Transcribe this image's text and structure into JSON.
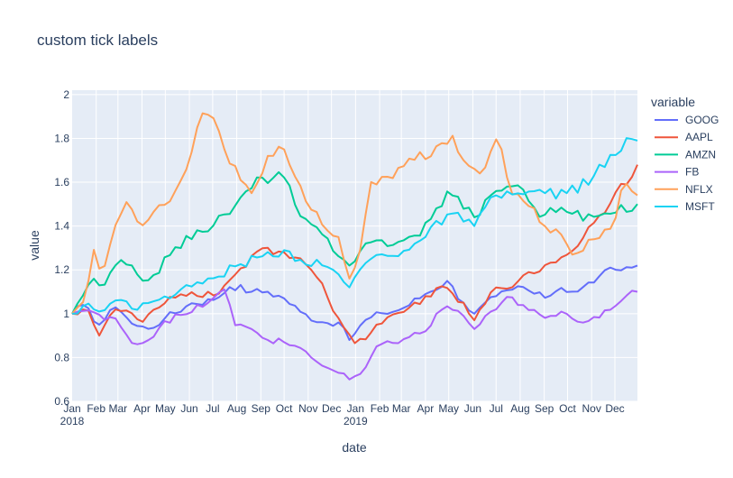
{
  "chart_data": {
    "type": "line",
    "title": "custom tick labels",
    "xlabel": "date",
    "ylabel": "value",
    "ylim": [
      0.6,
      2.02
    ],
    "y_ticks": [
      0.6,
      0.8,
      1,
      1.2,
      1.4,
      1.6,
      1.8,
      2
    ],
    "y_tick_labels": [
      "0.6",
      "0.8",
      "1",
      "1.2",
      "1.4",
      "1.6",
      "1.8",
      "2"
    ],
    "x_range": [
      "2018-01-01",
      "2019-12-30"
    ],
    "x_ticks": [
      {
        "date": "2018-01-01",
        "label": "Jan",
        "year": "2018"
      },
      {
        "date": "2018-02-01",
        "label": "Feb"
      },
      {
        "date": "2018-03-01",
        "label": "Mar"
      },
      {
        "date": "2018-04-01",
        "label": "Apr"
      },
      {
        "date": "2018-05-01",
        "label": "May"
      },
      {
        "date": "2018-06-01",
        "label": "Jun"
      },
      {
        "date": "2018-07-01",
        "label": "Jul"
      },
      {
        "date": "2018-08-01",
        "label": "Aug"
      },
      {
        "date": "2018-09-01",
        "label": "Sep"
      },
      {
        "date": "2018-10-01",
        "label": "Oct"
      },
      {
        "date": "2018-11-01",
        "label": "Nov"
      },
      {
        "date": "2018-12-01",
        "label": "Dec"
      },
      {
        "date": "2019-01-01",
        "label": "Jan",
        "year": "2019"
      },
      {
        "date": "2019-02-01",
        "label": "Feb"
      },
      {
        "date": "2019-03-01",
        "label": "Mar"
      },
      {
        "date": "2019-04-01",
        "label": "Apr"
      },
      {
        "date": "2019-05-01",
        "label": "May"
      },
      {
        "date": "2019-06-01",
        "label": "Jun"
      },
      {
        "date": "2019-07-01",
        "label": "Jul"
      },
      {
        "date": "2019-08-01",
        "label": "Aug"
      },
      {
        "date": "2019-09-01",
        "label": "Sep"
      },
      {
        "date": "2019-10-01",
        "label": "Oct"
      },
      {
        "date": "2019-11-01",
        "label": "Nov"
      },
      {
        "date": "2019-12-01",
        "label": "Dec"
      }
    ],
    "legend_title": "variable",
    "legend_position": "right",
    "series": [
      {
        "name": "GOOG",
        "color": "#636efa",
        "anchors": [
          [
            "2018-01-01",
            1.0
          ],
          [
            "2018-01-15",
            1.04
          ],
          [
            "2018-02-05",
            0.95
          ],
          [
            "2018-03-01",
            1.04
          ],
          [
            "2018-03-20",
            0.95
          ],
          [
            "2018-04-10",
            0.93
          ],
          [
            "2018-05-01",
            0.98
          ],
          [
            "2018-06-05",
            1.05
          ],
          [
            "2018-07-01",
            1.06
          ],
          [
            "2018-07-26",
            1.13
          ],
          [
            "2018-08-20",
            1.1
          ],
          [
            "2018-09-10",
            1.1
          ],
          [
            "2018-10-01",
            1.07
          ],
          [
            "2018-10-25",
            1.0
          ],
          [
            "2018-11-20",
            0.96
          ],
          [
            "2018-12-10",
            0.96
          ],
          [
            "2018-12-24",
            0.88
          ],
          [
            "2019-01-10",
            0.96
          ],
          [
            "2019-02-01",
            1.0
          ],
          [
            "2019-03-01",
            1.02
          ],
          [
            "2019-04-01",
            1.09
          ],
          [
            "2019-04-29",
            1.15
          ],
          [
            "2019-05-20",
            1.05
          ],
          [
            "2019-06-03",
            1.0
          ],
          [
            "2019-07-01",
            1.08
          ],
          [
            "2019-07-20",
            1.1
          ],
          [
            "2019-07-26",
            1.13
          ],
          [
            "2019-09-01",
            1.07
          ],
          [
            "2019-09-20",
            1.12
          ],
          [
            "2019-10-15",
            1.1
          ],
          [
            "2019-11-10",
            1.17
          ],
          [
            "2019-12-01",
            1.2
          ],
          [
            "2019-12-30",
            1.22
          ]
        ]
      },
      {
        "name": "AAPL",
        "color": "#ef553b",
        "anchors": [
          [
            "2018-01-01",
            1.0
          ],
          [
            "2018-01-20",
            1.03
          ],
          [
            "2018-02-05",
            0.9
          ],
          [
            "2018-02-20",
            1.0
          ],
          [
            "2018-03-10",
            1.02
          ],
          [
            "2018-04-01",
            0.96
          ],
          [
            "2018-05-01",
            1.05
          ],
          [
            "2018-06-01",
            1.1
          ],
          [
            "2018-07-01",
            1.08
          ],
          [
            "2018-07-25",
            1.16
          ],
          [
            "2018-08-15",
            1.22
          ],
          [
            "2018-09-01",
            1.3
          ],
          [
            "2018-10-01",
            1.28
          ],
          [
            "2018-10-20",
            1.26
          ],
          [
            "2018-11-10",
            1.18
          ],
          [
            "2018-11-25",
            1.08
          ],
          [
            "2018-12-10",
            0.98
          ],
          [
            "2019-01-01",
            0.86
          ],
          [
            "2019-02-01",
            0.95
          ],
          [
            "2019-03-01",
            1.0
          ],
          [
            "2019-04-01",
            1.08
          ],
          [
            "2019-05-01",
            1.12
          ],
          [
            "2019-06-03",
            0.97
          ],
          [
            "2019-07-01",
            1.12
          ],
          [
            "2019-08-01",
            1.15
          ],
          [
            "2019-09-01",
            1.22
          ],
          [
            "2019-10-01",
            1.27
          ],
          [
            "2019-11-01",
            1.4
          ],
          [
            "2019-12-01",
            1.55
          ],
          [
            "2019-12-30",
            1.68
          ]
        ]
      },
      {
        "name": "AMZN",
        "color": "#00cc96",
        "anchors": [
          [
            "2018-01-01",
            1.0
          ],
          [
            "2018-01-10",
            1.06
          ],
          [
            "2018-01-25",
            1.15
          ],
          [
            "2018-02-10",
            1.12
          ],
          [
            "2018-03-01",
            1.24
          ],
          [
            "2018-04-10",
            1.15
          ],
          [
            "2018-05-10",
            1.28
          ],
          [
            "2018-06-10",
            1.38
          ],
          [
            "2018-07-01",
            1.4
          ],
          [
            "2018-08-01",
            1.5
          ],
          [
            "2018-09-01",
            1.62
          ],
          [
            "2018-09-30",
            1.63
          ],
          [
            "2018-10-25",
            1.42
          ],
          [
            "2018-11-20",
            1.36
          ],
          [
            "2018-12-24",
            1.22
          ],
          [
            "2019-01-10",
            1.3
          ],
          [
            "2019-02-01",
            1.34
          ],
          [
            "2019-02-20",
            1.31
          ],
          [
            "2019-03-20",
            1.36
          ],
          [
            "2019-04-10",
            1.44
          ],
          [
            "2019-05-01",
            1.57
          ],
          [
            "2019-06-03",
            1.44
          ],
          [
            "2019-07-01",
            1.56
          ],
          [
            "2019-07-26",
            1.6
          ],
          [
            "2019-08-20",
            1.48
          ],
          [
            "2019-09-01",
            1.45
          ],
          [
            "2019-09-20",
            1.49
          ],
          [
            "2019-10-10",
            1.45
          ],
          [
            "2019-11-01",
            1.44
          ],
          [
            "2019-12-01",
            1.46
          ],
          [
            "2019-12-30",
            1.5
          ]
        ]
      },
      {
        "name": "FB",
        "color": "#ab63fa",
        "anchors": [
          [
            "2018-01-01",
            1.0
          ],
          [
            "2018-01-20",
            1.02
          ],
          [
            "2018-02-10",
            0.97
          ],
          [
            "2018-03-01",
            0.98
          ],
          [
            "2018-03-20",
            0.86
          ],
          [
            "2018-04-10",
            0.88
          ],
          [
            "2018-05-01",
            0.97
          ],
          [
            "2018-06-01",
            1.0
          ],
          [
            "2018-07-01",
            1.07
          ],
          [
            "2018-07-20",
            1.11
          ],
          [
            "2018-07-27",
            0.95
          ],
          [
            "2018-08-20",
            0.93
          ],
          [
            "2018-09-10",
            0.88
          ],
          [
            "2018-10-01",
            0.87
          ],
          [
            "2018-10-25",
            0.84
          ],
          [
            "2018-11-20",
            0.76
          ],
          [
            "2018-12-10",
            0.73
          ],
          [
            "2018-12-24",
            0.7
          ],
          [
            "2019-01-10",
            0.73
          ],
          [
            "2019-02-01",
            0.86
          ],
          [
            "2019-03-01",
            0.88
          ],
          [
            "2019-04-01",
            0.92
          ],
          [
            "2019-04-26",
            1.04
          ],
          [
            "2019-05-20",
            0.99
          ],
          [
            "2019-06-03",
            0.93
          ],
          [
            "2019-07-01",
            1.02
          ],
          [
            "2019-07-20",
            1.08
          ],
          [
            "2019-08-10",
            1.02
          ],
          [
            "2019-09-01",
            0.98
          ],
          [
            "2019-10-01",
            1.0
          ],
          [
            "2019-10-25",
            0.96
          ],
          [
            "2019-11-20",
            1.02
          ],
          [
            "2019-12-10",
            1.06
          ],
          [
            "2019-12-30",
            1.1
          ]
        ]
      },
      {
        "name": "NFLX",
        "color": "#ffa15a",
        "anchors": [
          [
            "2018-01-01",
            1.0
          ],
          [
            "2018-01-20",
            1.05
          ],
          [
            "2018-01-25",
            1.3
          ],
          [
            "2018-02-10",
            1.19
          ],
          [
            "2018-02-20",
            1.33
          ],
          [
            "2018-03-10",
            1.52
          ],
          [
            "2018-04-01",
            1.4
          ],
          [
            "2018-05-01",
            1.5
          ],
          [
            "2018-06-01",
            1.7
          ],
          [
            "2018-06-20",
            1.94
          ],
          [
            "2018-07-05",
            1.88
          ],
          [
            "2018-07-20",
            1.7
          ],
          [
            "2018-08-20",
            1.55
          ],
          [
            "2018-09-10",
            1.72
          ],
          [
            "2018-10-01",
            1.75
          ],
          [
            "2018-10-25",
            1.56
          ],
          [
            "2018-11-20",
            1.4
          ],
          [
            "2018-12-10",
            1.35
          ],
          [
            "2018-12-24",
            1.16
          ],
          [
            "2019-01-10",
            1.32
          ],
          [
            "2019-01-20",
            1.6
          ],
          [
            "2019-02-20",
            1.62
          ],
          [
            "2019-03-15",
            1.7
          ],
          [
            "2019-04-10",
            1.72
          ],
          [
            "2019-05-05",
            1.82
          ],
          [
            "2019-05-20",
            1.7
          ],
          [
            "2019-06-10",
            1.64
          ],
          [
            "2019-07-05",
            1.8
          ],
          [
            "2019-07-20",
            1.55
          ],
          [
            "2019-08-10",
            1.5
          ],
          [
            "2019-09-01",
            1.4
          ],
          [
            "2019-09-20",
            1.38
          ],
          [
            "2019-10-10",
            1.25
          ],
          [
            "2019-11-01",
            1.33
          ],
          [
            "2019-11-20",
            1.39
          ],
          [
            "2019-12-01",
            1.42
          ],
          [
            "2019-12-10",
            1.58
          ],
          [
            "2019-12-30",
            1.54
          ]
        ]
      },
      {
        "name": "MSFT",
        "color": "#19d3f3",
        "anchors": [
          [
            "2018-01-01",
            1.0
          ],
          [
            "2018-01-20",
            1.05
          ],
          [
            "2018-02-10",
            1.01
          ],
          [
            "2018-03-01",
            1.07
          ],
          [
            "2018-03-20",
            1.02
          ],
          [
            "2018-04-10",
            1.05
          ],
          [
            "2018-05-01",
            1.08
          ],
          [
            "2018-06-01",
            1.12
          ],
          [
            "2018-07-01",
            1.16
          ],
          [
            "2018-08-01",
            1.22
          ],
          [
            "2018-09-01",
            1.26
          ],
          [
            "2018-10-01",
            1.29
          ],
          [
            "2018-10-25",
            1.24
          ],
          [
            "2018-11-20",
            1.22
          ],
          [
            "2018-12-10",
            1.18
          ],
          [
            "2018-12-24",
            1.12
          ],
          [
            "2019-01-10",
            1.22
          ],
          [
            "2019-02-01",
            1.27
          ],
          [
            "2019-03-01",
            1.28
          ],
          [
            "2019-04-01",
            1.35
          ],
          [
            "2019-05-01",
            1.46
          ],
          [
            "2019-06-03",
            1.4
          ],
          [
            "2019-07-01",
            1.54
          ],
          [
            "2019-08-01",
            1.55
          ],
          [
            "2019-09-01",
            1.55
          ],
          [
            "2019-10-01",
            1.55
          ],
          [
            "2019-11-01",
            1.62
          ],
          [
            "2019-12-01",
            1.72
          ],
          [
            "2019-12-20",
            1.8
          ],
          [
            "2019-12-30",
            1.79
          ]
        ]
      }
    ]
  }
}
